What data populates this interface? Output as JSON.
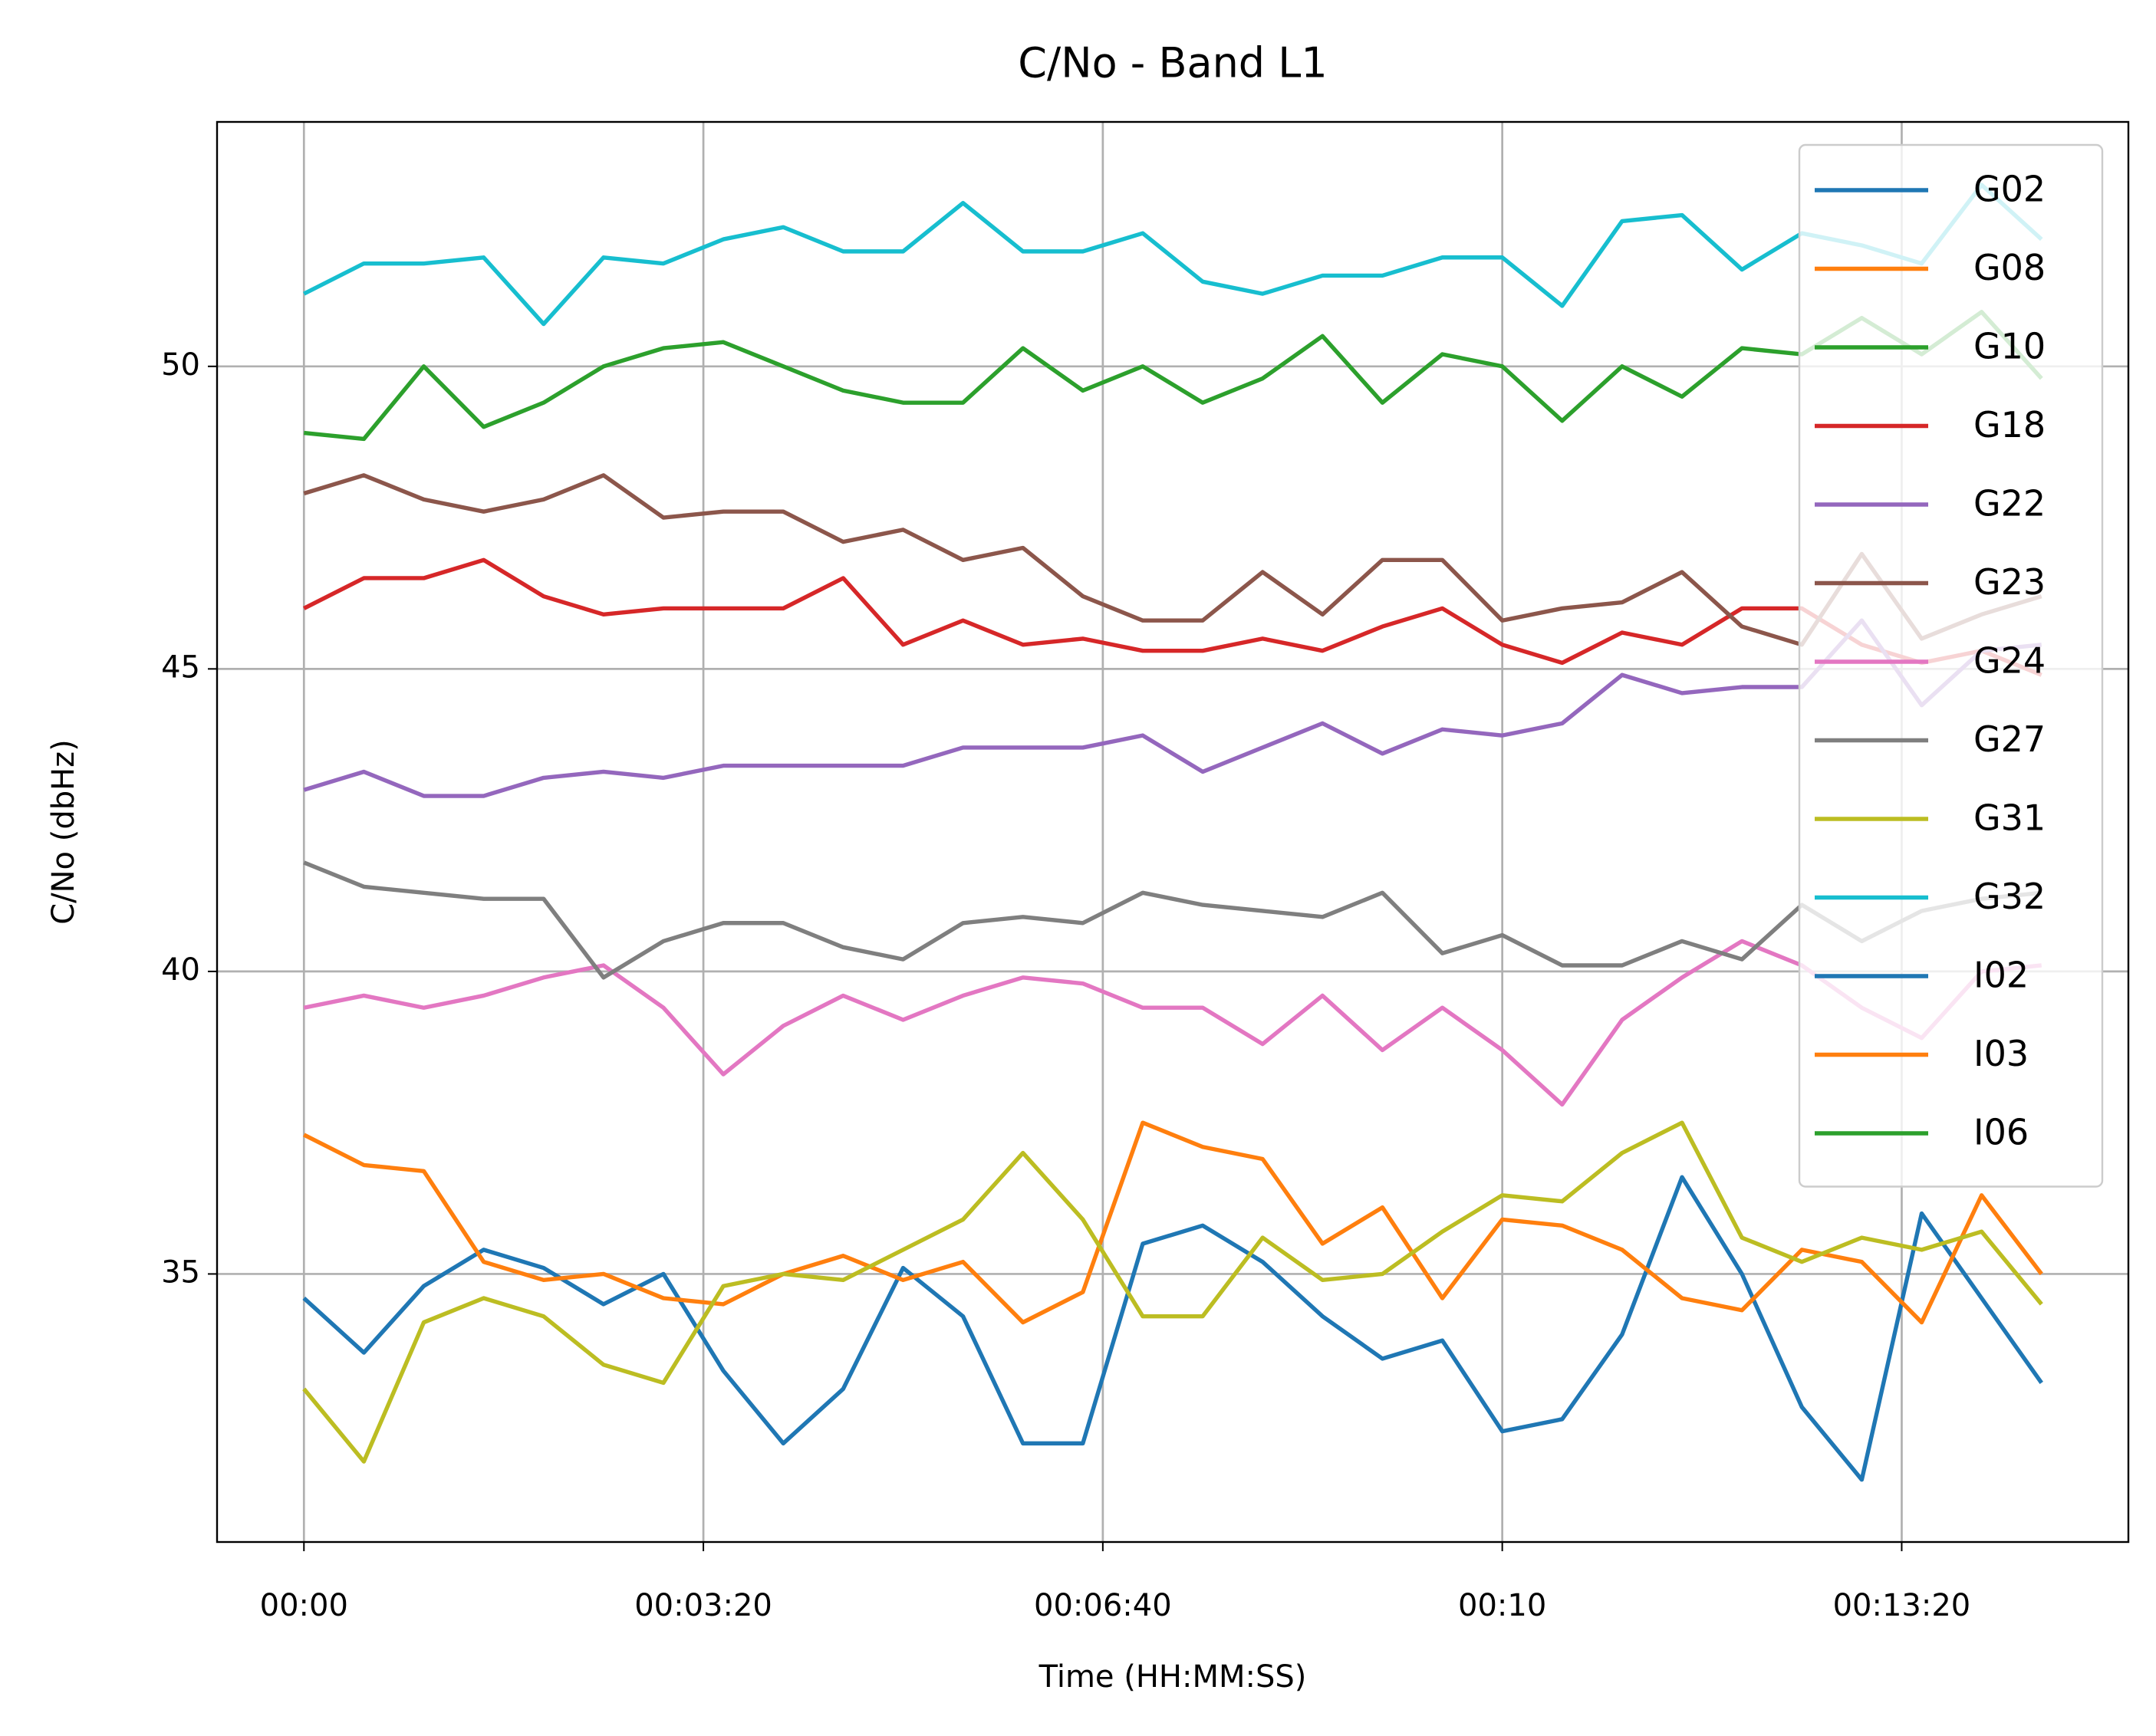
{
  "chart_data": {
    "type": "line",
    "title": "C/No - Band L1",
    "xlabel": "Time (HH:MM:SS)",
    "ylabel": "C/No (dbHz)",
    "x": [
      0,
      30,
      60,
      90,
      120,
      150,
      180,
      210,
      240,
      270,
      300,
      330,
      360,
      390,
      420,
      450,
      480,
      510,
      540,
      570,
      600,
      630,
      660,
      690,
      720,
      750,
      780,
      810,
      840,
      870
    ],
    "xlim": [
      -43.5,
      913.5
    ],
    "xticks": [
      {
        "value": 0,
        "label": "00:00"
      },
      {
        "value": 200,
        "label": "00:03:20"
      },
      {
        "value": 400,
        "label": "00:06:40"
      },
      {
        "value": 600,
        "label": "00:10"
      },
      {
        "value": 800,
        "label": "00:13:20"
      }
    ],
    "ylim": [
      30.57,
      54.04
    ],
    "yticks": [
      35,
      40,
      45,
      50
    ],
    "grid": true,
    "legend": "upper right",
    "series": [
      {
        "name": "G02",
        "color": "#1f77b4",
        "values": [
          34.6,
          33.7,
          34.8,
          35.4,
          35.1,
          34.5,
          35.0,
          33.4,
          32.2,
          33.1,
          35.1,
          34.3,
          32.2,
          32.2,
          35.5,
          35.8,
          35.2,
          34.3,
          33.6,
          33.9,
          32.4,
          32.6,
          34.0,
          36.6,
          35.0,
          32.8,
          31.6,
          36.0,
          34.6,
          33.2
        ]
      },
      {
        "name": "G08",
        "color": "#ff7f0e",
        "values": [
          37.3,
          36.8,
          36.7,
          35.2,
          34.9,
          35.0,
          34.6,
          34.5,
          35.0,
          35.3,
          34.9,
          35.2,
          34.2,
          34.7,
          37.5,
          37.1,
          36.9,
          35.5,
          36.1,
          34.6,
          35.9,
          35.8,
          35.4,
          34.6,
          34.4,
          35.4,
          35.2,
          34.2,
          36.3,
          35.0
        ]
      },
      {
        "name": "G10",
        "color": "#2ca02c",
        "values": [
          48.9,
          48.8,
          50.0,
          49.0,
          49.4,
          50.0,
          50.3,
          50.4,
          50.0,
          49.6,
          49.4,
          49.4,
          50.3,
          49.6,
          50.0,
          49.4,
          49.8,
          50.5,
          49.4,
          50.2,
          50.0,
          49.1,
          50.0,
          49.5,
          50.3,
          50.2,
          50.8,
          50.2,
          50.9,
          49.8
        ]
      },
      {
        "name": "G18",
        "color": "#d62728",
        "values": [
          46.0,
          46.5,
          46.5,
          46.8,
          46.2,
          45.9,
          46.0,
          46.0,
          46.0,
          46.5,
          45.4,
          45.8,
          45.4,
          45.5,
          45.3,
          45.3,
          45.5,
          45.3,
          45.7,
          46.0,
          45.4,
          45.1,
          45.6,
          45.4,
          46.0,
          46.0,
          45.4,
          45.1,
          45.3,
          44.9
        ]
      },
      {
        "name": "G22",
        "color": "#9467bd",
        "values": [
          43.0,
          43.3,
          42.9,
          42.9,
          43.2,
          43.3,
          43.2,
          43.4,
          43.4,
          43.4,
          43.4,
          43.7,
          43.7,
          43.7,
          43.9,
          43.3,
          43.7,
          44.1,
          43.6,
          44.0,
          43.9,
          44.1,
          44.9,
          44.6,
          44.7,
          44.7,
          45.8,
          44.4,
          45.3,
          45.4
        ]
      },
      {
        "name": "G23",
        "color": "#8c564b",
        "values": [
          47.9,
          48.2,
          47.8,
          47.6,
          47.8,
          48.2,
          47.5,
          47.6,
          47.6,
          47.1,
          47.3,
          46.8,
          47.0,
          46.2,
          45.8,
          45.8,
          46.6,
          45.9,
          46.8,
          46.8,
          45.8,
          46.0,
          46.1,
          46.6,
          45.7,
          45.4,
          46.9,
          45.5,
          45.9,
          46.2
        ]
      },
      {
        "name": "G24",
        "color": "#e377c2",
        "values": [
          39.4,
          39.6,
          39.4,
          39.6,
          39.9,
          40.1,
          39.4,
          38.3,
          39.1,
          39.6,
          39.2,
          39.6,
          39.9,
          39.8,
          39.4,
          39.4,
          38.8,
          39.6,
          38.7,
          39.4,
          38.7,
          37.8,
          39.2,
          39.9,
          40.5,
          40.1,
          39.4,
          38.9,
          40.0,
          40.1
        ]
      },
      {
        "name": "G27",
        "color": "#7f7f7f",
        "values": [
          41.8,
          41.4,
          41.3,
          41.2,
          41.2,
          39.9,
          40.5,
          40.8,
          40.8,
          40.4,
          40.2,
          40.8,
          40.9,
          40.8,
          41.3,
          41.1,
          41.0,
          40.9,
          41.3,
          40.3,
          40.6,
          40.1,
          40.1,
          40.5,
          40.2,
          41.1,
          40.5,
          41.0,
          41.2,
          41.3
        ]
      },
      {
        "name": "G31",
        "color": "#bcbd22",
        "values": [
          33.1,
          31.9,
          34.2,
          34.6,
          34.3,
          33.5,
          33.2,
          34.8,
          35.0,
          34.9,
          35.4,
          35.9,
          37.0,
          35.9,
          34.3,
          34.3,
          35.6,
          34.9,
          35.0,
          35.7,
          36.3,
          36.2,
          37.0,
          37.5,
          35.6,
          35.2,
          35.6,
          35.4,
          35.7,
          34.5
        ]
      },
      {
        "name": "G32",
        "color": "#17becf",
        "values": [
          51.2,
          51.7,
          51.7,
          51.8,
          50.7,
          51.8,
          51.7,
          52.1,
          52.3,
          51.9,
          51.9,
          52.7,
          51.9,
          51.9,
          52.2,
          51.4,
          51.2,
          51.5,
          51.5,
          51.8,
          51.8,
          51.0,
          52.4,
          52.5,
          51.6,
          52.2,
          52.0,
          51.7,
          53.0,
          52.1
        ]
      },
      {
        "name": "I02",
        "color": "#1f77b4",
        "values": [
          null,
          null,
          null,
          null,
          null,
          null,
          null,
          null,
          null,
          null,
          null,
          null,
          null,
          null,
          null,
          null,
          null,
          null,
          null,
          null,
          null,
          null,
          null,
          null,
          null,
          null,
          null,
          null,
          null,
          null
        ]
      },
      {
        "name": "I03",
        "color": "#ff7f0e",
        "values": [
          null,
          null,
          null,
          null,
          null,
          null,
          null,
          null,
          null,
          null,
          null,
          null,
          null,
          null,
          null,
          null,
          null,
          null,
          null,
          null,
          null,
          null,
          null,
          null,
          null,
          null,
          null,
          null,
          null,
          null
        ]
      },
      {
        "name": "I06",
        "color": "#2ca02c",
        "values": [
          null,
          null,
          null,
          null,
          null,
          null,
          null,
          null,
          null,
          null,
          null,
          null,
          null,
          null,
          null,
          null,
          null,
          null,
          null,
          null,
          null,
          null,
          null,
          null,
          null,
          null,
          null,
          null,
          null,
          null
        ]
      }
    ]
  }
}
